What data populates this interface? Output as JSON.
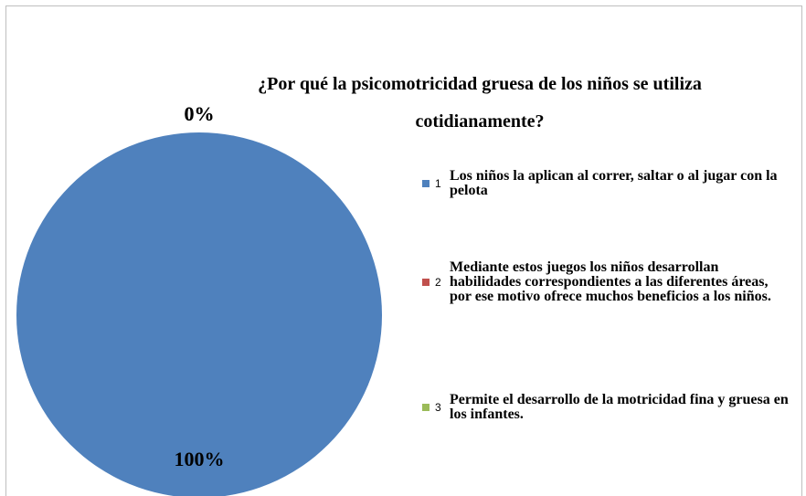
{
  "chart_data": {
    "type": "pie",
    "title": "¿Por qué la psicomotricidad gruesa de los niños se utiliza cotidianamente?",
    "categories": [
      "Los niños la aplican al correr, saltar o al jugar con la pelota",
      "Mediante estos juegos los niños desarrollan habilidades correspondientes a las diferentes áreas, por ese motivo ofrece muchos beneficios a los niños.",
      "Permite el desarrollo de la motricidad fina y gruesa en los infantes."
    ],
    "category_numbers": [
      "1",
      "2",
      "3"
    ],
    "values": [
      100,
      0,
      0
    ],
    "value_labels": [
      "100%",
      "0%",
      "0%"
    ],
    "colors": [
      "#4f81bd",
      "#c0504d",
      "#9bbb59"
    ],
    "legend": "right"
  }
}
